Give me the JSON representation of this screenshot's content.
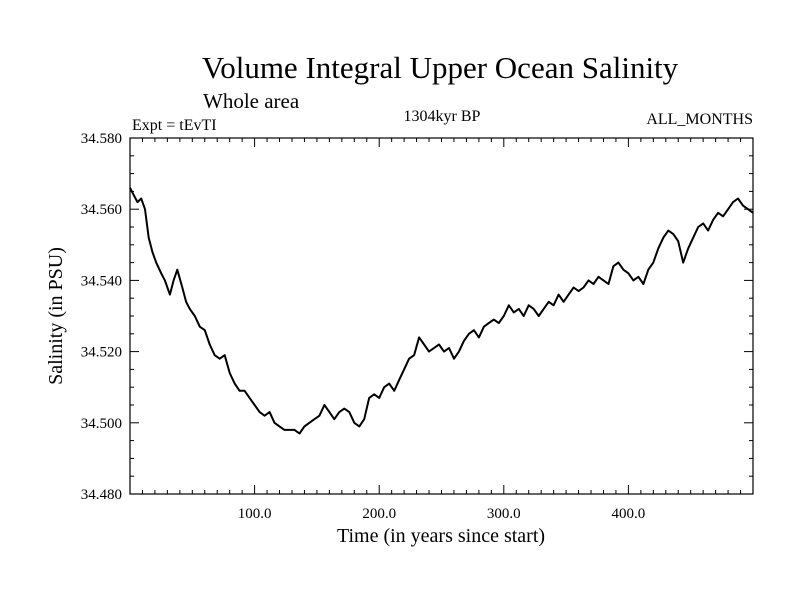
{
  "chart_data": {
    "type": "line",
    "title": "Volume Integral Upper Ocean Salinity",
    "subtitle": "Whole area",
    "annotations": {
      "experiment": "Expt = tEvTI",
      "period": "1304kyr BP",
      "months": "ALL_MONTHS"
    },
    "xlabel": "Time (in years since start)",
    "ylabel": "Salinity (in PSU)",
    "xlim": [
      0,
      500
    ],
    "ylim": [
      34.48,
      34.58
    ],
    "x_ticks": [
      {
        "value": 100,
        "label": "100.0"
      },
      {
        "value": 200,
        "label": "200.0"
      },
      {
        "value": 300,
        "label": "300.0"
      },
      {
        "value": 400,
        "label": "400.0"
      }
    ],
    "y_ticks": [
      {
        "value": 34.48,
        "label": "34.480"
      },
      {
        "value": 34.5,
        "label": "34.500"
      },
      {
        "value": 34.52,
        "label": "34.520"
      },
      {
        "value": 34.54,
        "label": "34.540"
      },
      {
        "value": 34.56,
        "label": "34.560"
      },
      {
        "value": 34.58,
        "label": "34.580"
      }
    ],
    "grid": false,
    "series": [
      {
        "name": "salinity",
        "color": "#000000",
        "x": [
          0,
          3,
          6,
          9,
          12,
          15,
          18,
          21,
          25,
          28,
          32,
          35,
          38,
          42,
          45,
          48,
          52,
          56,
          60,
          64,
          68,
          72,
          76,
          80,
          84,
          88,
          92,
          96,
          100,
          104,
          108,
          112,
          116,
          120,
          124,
          128,
          132,
          136,
          140,
          144,
          148,
          152,
          156,
          160,
          164,
          168,
          172,
          176,
          180,
          184,
          188,
          192,
          196,
          200,
          204,
          208,
          212,
          216,
          220,
          224,
          228,
          232,
          236,
          240,
          244,
          248,
          252,
          256,
          260,
          264,
          268,
          272,
          276,
          280,
          284,
          288,
          292,
          296,
          300,
          304,
          308,
          312,
          316,
          320,
          324,
          328,
          332,
          336,
          340,
          344,
          348,
          352,
          356,
          360,
          364,
          368,
          372,
          376,
          380,
          384,
          388,
          392,
          396,
          400,
          404,
          408,
          412,
          416,
          420,
          424,
          428,
          432,
          436,
          440,
          444,
          448,
          452,
          456,
          460,
          464,
          468,
          472,
          476,
          480,
          484,
          488,
          492,
          496,
          500
        ],
        "values": [
          34.566,
          34.564,
          34.562,
          34.563,
          34.56,
          34.552,
          34.548,
          34.545,
          34.542,
          34.54,
          34.536,
          34.54,
          34.543,
          34.538,
          34.534,
          34.532,
          34.53,
          34.527,
          34.526,
          34.522,
          34.519,
          34.518,
          34.519,
          34.514,
          34.511,
          34.509,
          34.509,
          34.507,
          34.505,
          34.503,
          34.502,
          34.503,
          34.5,
          34.499,
          34.498,
          34.498,
          34.498,
          34.497,
          34.499,
          34.5,
          34.501,
          34.502,
          34.505,
          34.503,
          34.501,
          34.503,
          34.504,
          34.503,
          34.5,
          34.499,
          34.501,
          34.507,
          34.508,
          34.507,
          34.51,
          34.511,
          34.509,
          34.512,
          34.515,
          34.518,
          34.519,
          34.524,
          34.522,
          34.52,
          34.521,
          34.522,
          34.52,
          34.521,
          34.518,
          34.52,
          34.523,
          34.525,
          34.526,
          34.524,
          34.527,
          34.528,
          34.529,
          34.528,
          34.53,
          34.533,
          34.531,
          34.532,
          34.53,
          34.533,
          34.532,
          34.53,
          34.532,
          34.534,
          34.533,
          34.536,
          34.534,
          34.536,
          34.538,
          34.537,
          34.538,
          34.54,
          34.539,
          34.541,
          34.54,
          34.539,
          34.544,
          34.545,
          34.543,
          34.542,
          34.54,
          34.541,
          34.539,
          34.543,
          34.545,
          34.549,
          34.552,
          34.554,
          34.553,
          34.551,
          34.545,
          34.549,
          34.552,
          34.555,
          34.556,
          34.554,
          34.557,
          34.559,
          34.558,
          34.56,
          34.562,
          34.563,
          34.561,
          34.56,
          34.559
        ]
      }
    ]
  }
}
